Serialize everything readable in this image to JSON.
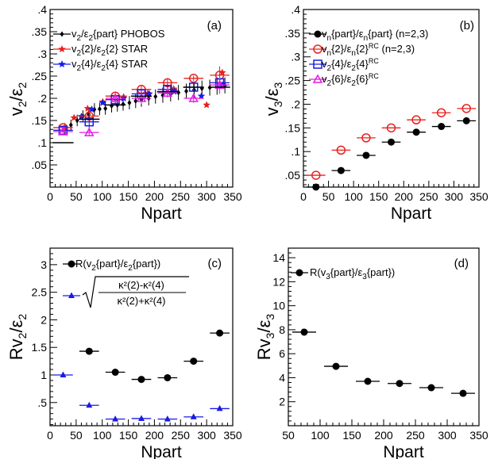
{
  "chart_data": [
    {
      "type": "scatter",
      "panel_label": "(a)",
      "xlabel": "Npart",
      "ylabel": "v2/ε2",
      "xlim": [
        0,
        350
      ],
      "ylim": [
        0,
        0.4
      ],
      "xticks": [
        0,
        50,
        100,
        150,
        200,
        250,
        300,
        350
      ],
      "yticks": [
        0.05,
        0.1,
        0.15,
        0.2,
        0.25,
        0.3,
        0.35,
        0.4
      ],
      "legend_position": "top-left",
      "series": [
        {
          "name": "v2/ε2{part} PHOBOS",
          "color": "#000000",
          "marker": "diamond",
          "points": [
            [
              28,
              0.132,
              0.012
            ],
            [
              40,
              0.14,
              0.012
            ],
            [
              52,
              0.15,
              0.013
            ],
            [
              63,
              0.16,
              0.013
            ],
            [
              74,
              0.164,
              0.013
            ],
            [
              85,
              0.175,
              0.014
            ],
            [
              95,
              0.176,
              0.014
            ],
            [
              106,
              0.177,
              0.014
            ],
            [
              118,
              0.183,
              0.015
            ],
            [
              129,
              0.185,
              0.015
            ],
            [
              140,
              0.187,
              0.015
            ],
            [
              152,
              0.19,
              0.015
            ],
            [
              164,
              0.194,
              0.016
            ],
            [
              175,
              0.197,
              0.016
            ],
            [
              189,
              0.2,
              0.016
            ],
            [
              202,
              0.204,
              0.016
            ],
            [
              216,
              0.207,
              0.017
            ],
            [
              231,
              0.21,
              0.017
            ],
            [
              246,
              0.213,
              0.017
            ],
            [
              261,
              0.216,
              0.017
            ],
            [
              276,
              0.219,
              0.018
            ],
            [
              291,
              0.222,
              0.018
            ],
            [
              306,
              0.224,
              0.018
            ],
            [
              320,
              0.226,
              0.018
            ],
            [
              335,
              0.229,
              0.018
            ]
          ]
        },
        {
          "name": "v2{2}/ε2{2} STAR",
          "color": "#e8201e",
          "marker": "star",
          "points": [
            [
              28,
              0.133,
              0.003
            ],
            [
              46,
              0.156,
              0.003
            ],
            [
              72,
              0.177,
              0.003
            ],
            [
              101,
              0.192,
              0.003
            ],
            [
              141,
              0.203,
              0.003
            ],
            [
              187,
              0.211,
              0.003
            ],
            [
              237,
              0.221,
              0.003
            ],
            [
              300,
              0.185,
              0.003
            ],
            [
              330,
              0.258,
              0.003
            ]
          ]
        },
        {
          "name": "v2{4}/ε2{4} STAR",
          "color": "#1a1ae6",
          "marker": "star",
          "points": [
            [
              60,
              0.159,
              0.003
            ],
            [
              80,
              0.175,
              0.003
            ],
            [
              101,
              0.19,
              0.003
            ],
            [
              141,
              0.2,
              0.003
            ],
            [
              190,
              0.21,
              0.003
            ],
            [
              238,
              0.215,
              0.003
            ],
            [
              290,
              0.205,
              0.003
            ],
            [
              330,
              0.23,
              0.003
            ]
          ]
        },
        {
          "name": "red circles",
          "color": "#e8201e",
          "marker": "open-circle",
          "legend": false,
          "points": [
            [
              25,
              0.134,
              0.005
            ],
            [
              75,
              0.16,
              0.01
            ],
            [
              125,
              0.205,
              0.008
            ],
            [
              175,
              0.22,
              0.01
            ],
            [
              225,
              0.235,
              0.01
            ],
            [
              275,
              0.245,
              0.006
            ],
            [
              325,
              0.252,
              0.02
            ]
          ]
        },
        {
          "name": "blue squares",
          "color": "#1a1ae6",
          "marker": "open-square",
          "legend": false,
          "points": [
            [
              25,
              0.128,
              0.005
            ],
            [
              75,
              0.147,
              0.015
            ],
            [
              125,
              0.197,
              0.01
            ],
            [
              175,
              0.21,
              0.01
            ],
            [
              225,
              0.22,
              0.012
            ],
            [
              275,
              0.225,
              0.01
            ],
            [
              325,
              0.235,
              0.01
            ]
          ]
        },
        {
          "name": "magenta triangles",
          "color": "#e619e6",
          "marker": "open-triangle",
          "legend": false,
          "points": [
            [
              25,
              0.125,
              0.005
            ],
            [
              75,
              0.123,
              0.008
            ],
            [
              125,
              0.2,
              0.01
            ],
            [
              175,
              0.2,
              0.012
            ],
            [
              225,
              0.212,
              0.01
            ],
            [
              275,
              0.2,
              0.01
            ],
            [
              325,
              0.23,
              0.02
            ]
          ]
        },
        {
          "name": "black bins",
          "color": "#000000",
          "marker": "hbar",
          "legend": false,
          "points": [
            [
              25,
              0.1
            ],
            [
              75,
              0.153
            ],
            [
              125,
              0.185
            ],
            [
              175,
              0.205
            ],
            [
              225,
              0.215
            ],
            [
              275,
              0.225
            ],
            [
              325,
              0.225
            ]
          ]
        }
      ]
    },
    {
      "type": "scatter",
      "panel_label": "(b)",
      "xlabel": "Npart",
      "ylabel": "v3/ε3",
      "xlim": [
        0,
        350
      ],
      "ylim": [
        0.025,
        0.4
      ],
      "xticks": [
        0,
        50,
        100,
        150,
        200,
        250,
        300,
        350
      ],
      "yticks": [
        0.05,
        0.1,
        0.15,
        0.2,
        0.25,
        0.3,
        0.35,
        0.4
      ],
      "legend_position": "top-left",
      "series": [
        {
          "name": "vn{part}/εn{part} (n=2,3)",
          "color": "#000000",
          "marker": "filled-circle",
          "points": [
            [
              25,
              0.025
            ],
            [
              75,
              0.06
            ],
            [
              125,
              0.092
            ],
            [
              175,
              0.12
            ],
            [
              225,
              0.141
            ],
            [
              275,
              0.153
            ],
            [
              325,
              0.165
            ]
          ]
        },
        {
          "name": "vn{2}/εn{2}RC (n=2,3)",
          "color": "#e8201e",
          "marker": "open-circle",
          "points": [
            [
              25,
              0.05
            ],
            [
              75,
              0.103
            ],
            [
              125,
              0.129
            ],
            [
              175,
              0.15
            ],
            [
              225,
              0.167
            ],
            [
              275,
              0.182
            ],
            [
              325,
              0.191
            ]
          ]
        },
        {
          "name": "v2{4}/ε2{4}RC",
          "color": "#1a1ae6",
          "marker": "open-square",
          "points": []
        },
        {
          "name": "v2{6}/ε2{6}RC",
          "color": "#e619e6",
          "marker": "open-triangle",
          "points": []
        }
      ]
    },
    {
      "type": "scatter",
      "panel_label": "(c)",
      "xlabel": "Npart",
      "ylabel": "Rv2/ε2",
      "xlim": [
        0,
        350
      ],
      "ylim": [
        0.08,
        3.3
      ],
      "xticks": [
        0,
        50,
        100,
        150,
        200,
        250,
        300,
        350
      ],
      "yticks": [
        0.5,
        1,
        1.5,
        2,
        2.5,
        3
      ],
      "legend_position": "top-left",
      "series": [
        {
          "name": "R(v2{part}/ε2{part})",
          "color": "#000000",
          "marker": "filled-circle",
          "points": [
            [
              75,
              1.43
            ],
            [
              125,
              1.05
            ],
            [
              175,
              0.92
            ],
            [
              225,
              0.95
            ],
            [
              275,
              1.25
            ],
            [
              325,
              1.76
            ]
          ]
        },
        {
          "name": "sqrt((κ²(2)-κ²(4))/(κ²(2)+κ²(4)))",
          "color": "#1a1ae6",
          "marker": "filled-triangle",
          "points": [
            [
              25,
              1.0
            ],
            [
              75,
              0.45
            ],
            [
              125,
              0.2
            ],
            [
              175,
              0.21
            ],
            [
              225,
              0.2
            ],
            [
              275,
              0.24
            ],
            [
              325,
              0.39
            ]
          ]
        }
      ]
    },
    {
      "type": "scatter",
      "panel_label": "(d)",
      "xlabel": "Npart",
      "ylabel": "Rv3/ε3",
      "xlim": [
        50,
        350
      ],
      "ylim": [
        0,
        14.8
      ],
      "xticks": [
        50,
        100,
        150,
        200,
        250,
        300,
        350
      ],
      "yticks": [
        2,
        4,
        6,
        8,
        10,
        12,
        14
      ],
      "legend_position": "top-left",
      "series": [
        {
          "name": "R(v3{part}/ε3{part})",
          "color": "#000000",
          "marker": "filled-circle",
          "points": [
            [
              75,
              7.8
            ],
            [
              125,
              4.95
            ],
            [
              175,
              3.7
            ],
            [
              225,
              3.52
            ],
            [
              275,
              3.17
            ],
            [
              325,
              2.7
            ]
          ]
        }
      ]
    }
  ],
  "legends": {
    "a": [
      {
        "pre": "v",
        "sub1": "2",
        "mid": "/ε",
        "sub2": "2",
        "post": "{part} PHOBOS"
      },
      {
        "pre": "v",
        "sub1": "2",
        "mid": "{2}/ε",
        "sub2": "2",
        "post": "{2} STAR"
      },
      {
        "pre": "v",
        "sub1": "2",
        "mid": "{4}/ε",
        "sub2": "2",
        "post": "{4} STAR"
      }
    ],
    "b": [
      {
        "pre": "v",
        "sub1": "n",
        "mid": "{part}/ε",
        "sub2": "n",
        "post": "{part} (n=2,3)",
        "sup": ""
      },
      {
        "pre": "v",
        "sub1": "n",
        "mid": "{2}/ε",
        "sub2": "n",
        "post": "{2}",
        "sup": "RC",
        "post2": " (n=2,3)"
      },
      {
        "pre": "v",
        "sub1": "2",
        "mid": "{4}/ε",
        "sub2": "2",
        "post": "{4}",
        "sup": "RC"
      },
      {
        "pre": "v",
        "sub1": "2",
        "mid": "{6}/ε",
        "sub2": "2",
        "post": "{6}",
        "sup": "RC"
      }
    ],
    "c": [
      {
        "pre": "R(v",
        "sub1": "2",
        "mid": "{part}/ε",
        "sub2": "2",
        "post": "{part})"
      }
    ],
    "c_formula": {
      "num": "κ²(2)-κ²(4)",
      "den": "κ²(2)+κ²(4)"
    },
    "d": [
      {
        "pre": "R(v",
        "sub1": "3",
        "mid": "{part}/ε",
        "sub2": "3",
        "post": "{part})"
      }
    ]
  }
}
